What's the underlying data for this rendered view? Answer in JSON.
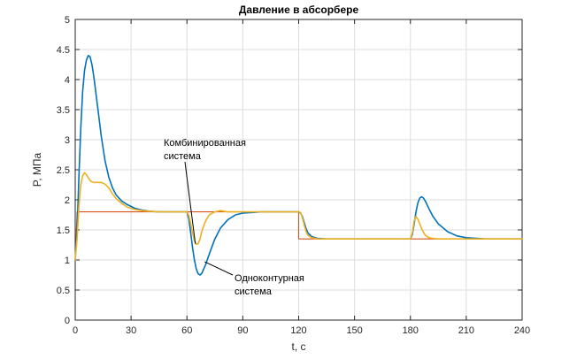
{
  "chart_data": {
    "type": "line",
    "title": "Давление в абсорбере",
    "xlabel": "t, с",
    "ylabel": "P, МПа",
    "xlim": [
      0,
      240
    ],
    "ylim": [
      0,
      5
    ],
    "xticks": [
      "0",
      "30",
      "60",
      "90",
      "120",
      "150",
      "180",
      "210",
      "240"
    ],
    "yticks": [
      "0",
      "0.5",
      "1",
      "1.5",
      "2",
      "2.5",
      "3",
      "3.5",
      "4",
      "4.5",
      "5"
    ],
    "grid": true,
    "colors": {
      "blue": "#0072BD",
      "orange": "#D95319",
      "yellow": "#EDB120"
    },
    "series": [
      {
        "color": "#D95319",
        "x": [
          0,
          0.5,
          1,
          60,
          60.01,
          120,
          120.01,
          180,
          180.01,
          240
        ],
        "y": [
          1.0,
          1.4,
          1.8,
          1.8,
          1.8,
          1.8,
          1.35,
          1.35,
          1.35,
          1.35
        ]
      },
      {
        "color": "#0072BD",
        "x": [
          0,
          1,
          2,
          3,
          4,
          5,
          6,
          7,
          8,
          9,
          10,
          12,
          14,
          16,
          18,
          20,
          22,
          25,
          28,
          32,
          36,
          40,
          45,
          50,
          55,
          60,
          61,
          62,
          63,
          64,
          65,
          66,
          67,
          68,
          70,
          72,
          75,
          78,
          82,
          86,
          90,
          95,
          100,
          105,
          110,
          115,
          120,
          121,
          122,
          123,
          124,
          125,
          127,
          130,
          135,
          140,
          150,
          160,
          170,
          180,
          181,
          182,
          183,
          184,
          185,
          186,
          187,
          188,
          190,
          192,
          195,
          200,
          205,
          210,
          220,
          230,
          240
        ],
        "y": [
          1.0,
          1.5,
          2.4,
          3.2,
          3.8,
          4.15,
          4.32,
          4.4,
          4.38,
          4.25,
          4.05,
          3.55,
          3.05,
          2.65,
          2.38,
          2.2,
          2.08,
          1.98,
          1.92,
          1.86,
          1.83,
          1.81,
          1.8,
          1.8,
          1.8,
          1.8,
          1.68,
          1.45,
          1.2,
          1.0,
          0.85,
          0.77,
          0.75,
          0.78,
          0.92,
          1.1,
          1.35,
          1.53,
          1.67,
          1.75,
          1.78,
          1.79,
          1.8,
          1.8,
          1.8,
          1.8,
          1.8,
          1.78,
          1.72,
          1.62,
          1.52,
          1.45,
          1.39,
          1.36,
          1.35,
          1.35,
          1.35,
          1.35,
          1.35,
          1.35,
          1.42,
          1.6,
          1.8,
          1.95,
          2.03,
          2.05,
          2.03,
          1.98,
          1.85,
          1.73,
          1.6,
          1.47,
          1.4,
          1.37,
          1.35,
          1.35,
          1.35
        ]
      },
      {
        "color": "#EDB120",
        "x": [
          0,
          1,
          2,
          3,
          4,
          5,
          6,
          7,
          8,
          9,
          10,
          12,
          14,
          16,
          18,
          20,
          22,
          25,
          28,
          32,
          36,
          40,
          45,
          50,
          55,
          60,
          61,
          62,
          63,
          64,
          65,
          66,
          67,
          68,
          70,
          72,
          75,
          78,
          82,
          86,
          90,
          95,
          100,
          105,
          110,
          115,
          120,
          121,
          122,
          123,
          124,
          125,
          127,
          130,
          135,
          140,
          150,
          160,
          170,
          180,
          181,
          182,
          183,
          184,
          185,
          186,
          187,
          188,
          190,
          192,
          195,
          200,
          205,
          210,
          220,
          230,
          240
        ],
        "y": [
          1.0,
          1.35,
          1.9,
          2.25,
          2.4,
          2.45,
          2.42,
          2.37,
          2.32,
          2.3,
          2.29,
          2.29,
          2.29,
          2.26,
          2.2,
          2.1,
          2.02,
          1.94,
          1.88,
          1.84,
          1.82,
          1.81,
          1.8,
          1.8,
          1.8,
          1.8,
          1.74,
          1.6,
          1.45,
          1.32,
          1.26,
          1.27,
          1.35,
          1.48,
          1.65,
          1.75,
          1.8,
          1.82,
          1.8,
          1.8,
          1.8,
          1.8,
          1.8,
          1.8,
          1.8,
          1.8,
          1.8,
          1.79,
          1.7,
          1.58,
          1.47,
          1.41,
          1.37,
          1.35,
          1.35,
          1.35,
          1.35,
          1.35,
          1.35,
          1.35,
          1.45,
          1.65,
          1.72,
          1.68,
          1.6,
          1.52,
          1.46,
          1.41,
          1.37,
          1.36,
          1.35,
          1.35,
          1.35,
          1.35,
          1.35,
          1.35,
          1.35
        ]
      }
    ],
    "annotations": [
      {
        "lines": [
          "Комбинированная",
          "система"
        ],
        "target_x": 64.5,
        "target_y": 1.27
      },
      {
        "lines": [
          "Одноконтурная",
          "система"
        ],
        "target_x": 69.5,
        "target_y": 0.97
      }
    ]
  }
}
